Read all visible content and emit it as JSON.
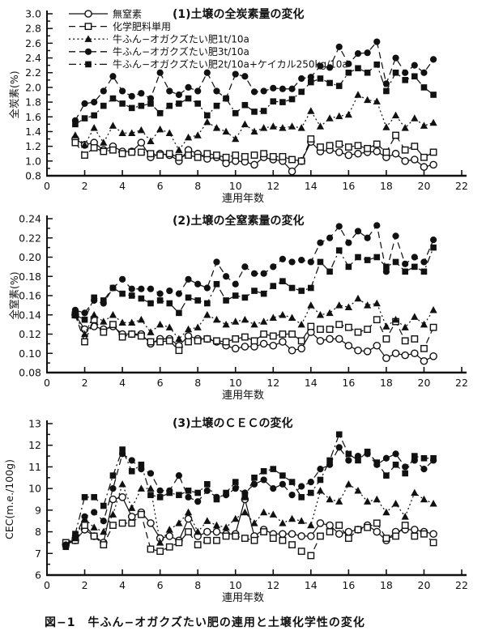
{
  "figure": {
    "caption": "図−1　牛ふん−オガクズたい肥の連用と土壌化学性の変化",
    "ink_color": "#111111",
    "background_color": "#ffffff"
  },
  "legend": {
    "position": "top-left-inside-chart-1",
    "items": [
      {
        "label": "無窒素",
        "marker": "circle-open",
        "line": "solid"
      },
      {
        "label": "化学肥料単用",
        "marker": "square-open",
        "line": "dashed"
      },
      {
        "label": "牛ふん−オガクズたい肥1t/10a",
        "marker": "triangle-filled",
        "line": "dotted"
      },
      {
        "label": "牛ふん−オガクズたい肥3t/10a",
        "marker": "circle-filled",
        "line": "dashed"
      },
      {
        "label": "牛ふん−オガクズたい肥2t/10a+ケイカル250kg/10a",
        "marker": "square-filled",
        "line": "dashdot"
      }
    ]
  },
  "chart_data": [
    {
      "type": "line",
      "title": "(1)土壌の全炭素量の変化",
      "xlabel": "連用年数",
      "ylabel": "全炭素(%)",
      "xlim": [
        0,
        22
      ],
      "xtick_step": 2,
      "ylim": [
        0.8,
        3.0
      ],
      "ytick_step": 0.2,
      "yminor_step": 0.1,
      "ydecimals": 1,
      "grid": false,
      "show_legend": true,
      "x": [
        1.5,
        2,
        2.5,
        3,
        3.5,
        4,
        4.5,
        5,
        5.5,
        6,
        6.5,
        7,
        7.5,
        8,
        8.5,
        9,
        9.5,
        10,
        10.5,
        11,
        11.5,
        12,
        12.5,
        13,
        13.5,
        14,
        14.5,
        15,
        15.5,
        16,
        16.5,
        17,
        17.5,
        18,
        18.5,
        19,
        19.5,
        20,
        20.5
      ],
      "series": [
        {
          "key": "no-nitrogen",
          "name": "無窒素",
          "marker": "circle-open",
          "line": "solid",
          "values": [
            1.3,
            1.22,
            1.25,
            1.15,
            1.2,
            1.13,
            1.13,
            1.25,
            1.05,
            1.1,
            1.08,
            1.0,
            1.15,
            1.1,
            1.03,
            1.05,
            0.97,
            1.0,
            0.99,
            0.95,
            1.05,
            1.02,
            1.0,
            0.86,
            1.0,
            1.26,
            1.13,
            1.15,
            1.12,
            1.08,
            1.1,
            1.12,
            1.13,
            1.05,
            1.1,
            1.0,
            1.02,
            0.92,
            0.95
          ]
        },
        {
          "key": "chemical-only",
          "name": "化学肥料単用",
          "marker": "square-open",
          "line": "dashed",
          "values": [
            1.25,
            1.08,
            1.18,
            1.13,
            1.15,
            1.1,
            1.12,
            1.12,
            1.1,
            1.08,
            1.1,
            1.05,
            1.08,
            1.05,
            1.1,
            1.08,
            1.05,
            1.08,
            1.06,
            1.08,
            1.1,
            1.06,
            1.06,
            1.02,
            1.0,
            1.3,
            1.19,
            1.21,
            1.23,
            1.19,
            1.21,
            1.17,
            1.23,
            1.12,
            1.35,
            1.15,
            1.2,
            1.05,
            1.12
          ]
        },
        {
          "key": "compost-1t",
          "name": "牛ふん−オガクズたい肥1t/10a",
          "marker": "triangle-filled",
          "line": "dotted",
          "values": [
            1.35,
            1.22,
            1.45,
            1.25,
            1.48,
            1.38,
            1.38,
            1.42,
            1.27,
            1.43,
            1.38,
            1.15,
            1.32,
            1.35,
            1.53,
            1.45,
            1.4,
            1.3,
            1.5,
            1.4,
            1.45,
            1.47,
            1.45,
            1.47,
            1.45,
            1.68,
            1.47,
            1.58,
            1.61,
            1.63,
            1.9,
            1.83,
            1.81,
            1.46,
            1.62,
            1.45,
            1.58,
            1.48,
            1.52
          ]
        },
        {
          "key": "compost-3t",
          "name": "牛ふん−オガクズたい肥3t/10a",
          "marker": "circle-filled",
          "line": "dashed",
          "values": [
            1.55,
            1.78,
            1.8,
            1.95,
            2.15,
            1.95,
            1.88,
            1.92,
            1.85,
            2.2,
            1.95,
            1.9,
            2.0,
            1.95,
            2.2,
            1.95,
            1.85,
            2.18,
            2.15,
            1.94,
            1.95,
            1.99,
            1.98,
            1.98,
            2.12,
            2.14,
            2.29,
            2.27,
            2.55,
            2.32,
            2.46,
            2.47,
            2.62,
            2.05,
            2.4,
            2.2,
            2.3,
            2.2,
            2.38
          ]
        },
        {
          "key": "compost-2t-keical",
          "name": "牛ふん−オガクズたい肥2t/10a+ケイカル250kg/10a",
          "marker": "square-filled",
          "line": "dashdot",
          "values": [
            1.5,
            1.58,
            1.62,
            1.75,
            1.85,
            1.78,
            1.72,
            1.75,
            1.78,
            1.65,
            1.75,
            1.78,
            1.85,
            1.78,
            1.62,
            1.75,
            1.85,
            1.65,
            1.76,
            1.67,
            1.68,
            1.81,
            1.8,
            1.84,
            1.94,
            2.07,
            2.12,
            2.06,
            2.02,
            2.2,
            2.26,
            2.2,
            2.31,
            1.95,
            2.2,
            2.1,
            2.15,
            2.0,
            1.9
          ]
        }
      ]
    },
    {
      "type": "line",
      "title": "(2)土壌の全窒素量の変化",
      "xlabel": "連用年数",
      "ylabel": "全窒素(%)",
      "xlim": [
        0,
        22
      ],
      "xtick_step": 2,
      "ylim": [
        0.08,
        0.24
      ],
      "ytick_step": 0.02,
      "yminor_step": 0.01,
      "ydecimals": 2,
      "grid": false,
      "show_legend": false,
      "x": [
        1.5,
        2,
        2.5,
        3,
        3.5,
        4,
        4.5,
        5,
        5.5,
        6,
        6.5,
        7,
        7.5,
        8,
        8.5,
        9,
        9.5,
        10,
        10.5,
        11,
        11.5,
        12,
        12.5,
        13,
        13.5,
        14,
        14.5,
        15,
        15.5,
        16,
        16.5,
        17,
        17.5,
        18,
        18.5,
        19,
        19.5,
        20,
        20.5
      ],
      "series": [
        {
          "key": "no-nitrogen",
          "name": "無窒素",
          "marker": "circle-open",
          "line": "solid",
          "values": [
            0.14,
            0.125,
            0.128,
            0.125,
            0.128,
            0.12,
            0.12,
            0.12,
            0.11,
            0.115,
            0.115,
            0.108,
            0.118,
            0.115,
            0.115,
            0.112,
            0.108,
            0.105,
            0.107,
            0.107,
            0.11,
            0.108,
            0.112,
            0.103,
            0.105,
            0.122,
            0.113,
            0.115,
            0.115,
            0.108,
            0.103,
            0.102,
            0.108,
            0.095,
            0.1,
            0.098,
            0.1,
            0.092,
            0.097
          ]
        },
        {
          "key": "chemical-only",
          "name": "化学肥料単用",
          "marker": "square-open",
          "line": "dashed",
          "values": [
            0.14,
            0.112,
            0.135,
            0.122,
            0.13,
            0.117,
            0.12,
            0.118,
            0.112,
            0.112,
            0.113,
            0.103,
            0.112,
            0.113,
            0.115,
            0.113,
            0.112,
            0.115,
            0.117,
            0.113,
            0.12,
            0.118,
            0.12,
            0.12,
            0.113,
            0.128,
            0.125,
            0.125,
            0.13,
            0.127,
            0.122,
            0.125,
            0.135,
            0.115,
            0.133,
            0.113,
            0.115,
            0.105,
            0.127
          ]
        },
        {
          "key": "compost-1t",
          "name": "牛ふん−オガクズたい肥1t/10a",
          "marker": "triangle-filled",
          "line": "dotted",
          "values": [
            0.14,
            0.12,
            0.14,
            0.133,
            0.14,
            0.132,
            0.132,
            0.135,
            0.122,
            0.13,
            0.127,
            0.115,
            0.125,
            0.127,
            0.14,
            0.135,
            0.13,
            0.133,
            0.135,
            0.13,
            0.133,
            0.137,
            0.14,
            0.137,
            0.13,
            0.15,
            0.14,
            0.142,
            0.15,
            0.148,
            0.157,
            0.15,
            0.152,
            0.128,
            0.135,
            0.127,
            0.138,
            0.13,
            0.145
          ]
        },
        {
          "key": "compost-3t",
          "name": "牛ふん−オガクズたい肥3t/10a",
          "marker": "circle-filled",
          "line": "dashed",
          "values": [
            0.145,
            0.142,
            0.155,
            0.152,
            0.168,
            0.177,
            0.167,
            0.167,
            0.167,
            0.162,
            0.165,
            0.162,
            0.177,
            0.172,
            0.168,
            0.195,
            0.18,
            0.172,
            0.19,
            0.183,
            0.183,
            0.19,
            0.198,
            0.195,
            0.197,
            0.195,
            0.215,
            0.22,
            0.232,
            0.215,
            0.227,
            0.22,
            0.233,
            0.185,
            0.222,
            0.193,
            0.2,
            0.195,
            0.218
          ]
        },
        {
          "key": "compost-2t-keical",
          "name": "牛ふん−オガクズたい肥2t/10a+ケイカル250kg/10a",
          "marker": "square-filled",
          "line": "dashdot",
          "values": [
            0.14,
            0.135,
            0.158,
            0.155,
            0.168,
            0.162,
            0.16,
            0.157,
            0.152,
            0.155,
            0.152,
            0.142,
            0.158,
            0.155,
            0.152,
            0.172,
            0.155,
            0.16,
            0.158,
            0.165,
            0.162,
            0.17,
            0.175,
            0.168,
            0.165,
            0.168,
            0.195,
            0.185,
            0.207,
            0.19,
            0.2,
            0.197,
            0.2,
            0.19,
            0.195,
            0.185,
            0.19,
            0.185,
            0.21
          ]
        }
      ]
    },
    {
      "type": "line",
      "title": "(3)土壌のＣＥＣの変化",
      "xlabel": "連用年数",
      "ylabel": "CEC(m.e./100g)",
      "xlim": [
        0,
        22
      ],
      "xtick_step": 2,
      "ylim": [
        6,
        13
      ],
      "ytick_step": 1,
      "yminor_step": 0.5,
      "ydecimals": 0,
      "grid": false,
      "show_legend": false,
      "x": [
        1,
        1.5,
        2,
        2.5,
        3,
        3.5,
        4,
        4.5,
        5,
        5.5,
        6,
        6.5,
        7,
        7.5,
        8,
        8.5,
        9,
        9.5,
        10,
        10.5,
        11,
        11.5,
        12,
        12.5,
        13,
        13.5,
        14,
        14.5,
        15,
        15.5,
        16,
        16.5,
        17,
        17.5,
        18,
        18.5,
        19,
        19.5,
        20,
        20.5
      ],
      "series": [
        {
          "key": "no-nitrogen",
          "name": "無窒素",
          "marker": "circle-open",
          "line": "solid",
          "values": [
            7.4,
            7.6,
            8.1,
            7.8,
            7.5,
            9.5,
            9.6,
            8.7,
            8.9,
            8.4,
            7.7,
            7.8,
            7.6,
            8.6,
            7.8,
            8.0,
            8.0,
            7.9,
            7.9,
            9.5,
            7.8,
            8.1,
            7.9,
            7.9,
            7.9,
            7.8,
            7.8,
            8.4,
            8.3,
            7.9,
            8.0,
            8.1,
            8.3,
            8.0,
            7.6,
            8.0,
            8.1,
            8.1,
            8.0,
            7.9
          ]
        },
        {
          "key": "chemical-only",
          "name": "化学肥料単用",
          "marker": "square-open",
          "line": "dashed",
          "values": [
            7.5,
            7.6,
            8.3,
            7.8,
            7.4,
            8.3,
            8.4,
            8.4,
            8.8,
            7.2,
            7.1,
            7.3,
            7.5,
            8.0,
            7.4,
            7.6,
            7.6,
            7.8,
            7.8,
            7.7,
            7.6,
            8.0,
            7.7,
            7.6,
            7.4,
            7.1,
            6.9,
            7.8,
            8.0,
            8.3,
            7.7,
            8.1,
            8.2,
            8.4,
            7.7,
            7.8,
            8.3,
            7.8,
            7.9,
            7.5
          ]
        },
        {
          "key": "compost-1t",
          "name": "牛ふん−オガクズたい肥1t/10a",
          "marker": "triangle-filled",
          "line": "dotted",
          "values": [
            7.4,
            7.7,
            8.6,
            8.2,
            8.0,
            8.8,
            10.2,
            9.1,
            10.0,
            10.0,
            7.5,
            8.1,
            8.4,
            8.9,
            8.0,
            8.5,
            8.3,
            8.2,
            8.6,
            8.9,
            8.4,
            8.9,
            8.8,
            8.4,
            8.6,
            8.5,
            8.3,
            9.9,
            9.5,
            9.4,
            10.2,
            9.9,
            9.4,
            9.5,
            8.9,
            9.3,
            8.7,
            9.8,
            9.5,
            9.3
          ]
        },
        {
          "key": "compost-3t",
          "name": "牛ふん−オガクズたい肥3t/10a",
          "marker": "circle-filled",
          "line": "dashed",
          "values": [
            7.4,
            7.8,
            8.7,
            8.9,
            8.5,
            10.0,
            11.6,
            11.3,
            10.9,
            10.7,
            9.9,
            9.9,
            10.6,
            9.6,
            9.4,
            9.9,
            9.6,
            9.7,
            10.0,
            9.8,
            10.2,
            10.4,
            10.0,
            10.2,
            9.7,
            10.1,
            10.3,
            10.9,
            11.1,
            11.9,
            11.3,
            11.5,
            11.6,
            11.1,
            11.4,
            11.6,
            11.0,
            11.3,
            10.9,
            11.3
          ]
        },
        {
          "key": "compost-2t-keical",
          "name": "牛ふん−オガクズたい肥2t/10a+ケイカル250kg/10a",
          "marker": "square-filled",
          "line": "dashdot",
          "values": [
            7.3,
            7.9,
            9.6,
            9.6,
            9.2,
            10.6,
            11.8,
            10.8,
            11.1,
            9.7,
            9.6,
            9.8,
            9.7,
            9.9,
            9.8,
            10.2,
            9.5,
            9.8,
            10.3,
            9.6,
            10.5,
            10.8,
            10.9,
            10.6,
            10.3,
            9.6,
            9.8,
            10.4,
            11.3,
            12.5,
            11.6,
            11.3,
            11.7,
            11.2,
            10.6,
            11.1,
            10.7,
            11.5,
            11.4,
            11.4
          ]
        }
      ]
    }
  ]
}
